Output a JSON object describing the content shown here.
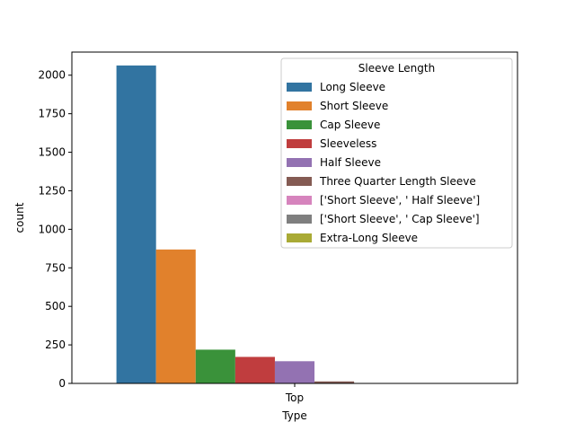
{
  "chart_data": {
    "type": "bar",
    "categories": [
      "Top"
    ],
    "xlabel": "Type",
    "ylabel": "count",
    "ylim": [
      0,
      2150
    ],
    "yticks": [
      0,
      250,
      500,
      750,
      1000,
      1250,
      1500,
      1750,
      2000
    ],
    "legend": {
      "title": "Sleeve Length",
      "placement": "top-right"
    },
    "series": [
      {
        "name": "Long Sleeve",
        "values": [
          2063
        ],
        "color": "#3274a1"
      },
      {
        "name": "Short Sleeve",
        "values": [
          869
        ],
        "color": "#e1812c"
      },
      {
        "name": "Cap Sleeve",
        "values": [
          219
        ],
        "color": "#3a923a"
      },
      {
        "name": "Sleeveless",
        "values": [
          172
        ],
        "color": "#c03d3e"
      },
      {
        "name": "Half Sleeve",
        "values": [
          144
        ],
        "color": "#9372b2"
      },
      {
        "name": "Three Quarter Length Sleeve",
        "values": [
          13
        ],
        "color": "#845b53"
      },
      {
        "name": "['Short Sleeve', ' Half Sleeve']",
        "values": [
          1
        ],
        "color": "#d684bd"
      },
      {
        "name": "['Short Sleeve', ' Cap Sleeve']",
        "values": [
          1
        ],
        "color": "#7f7f7f"
      },
      {
        "name": "Extra-Long Sleeve",
        "values": [
          1
        ],
        "color": "#a9aa35"
      }
    ]
  }
}
